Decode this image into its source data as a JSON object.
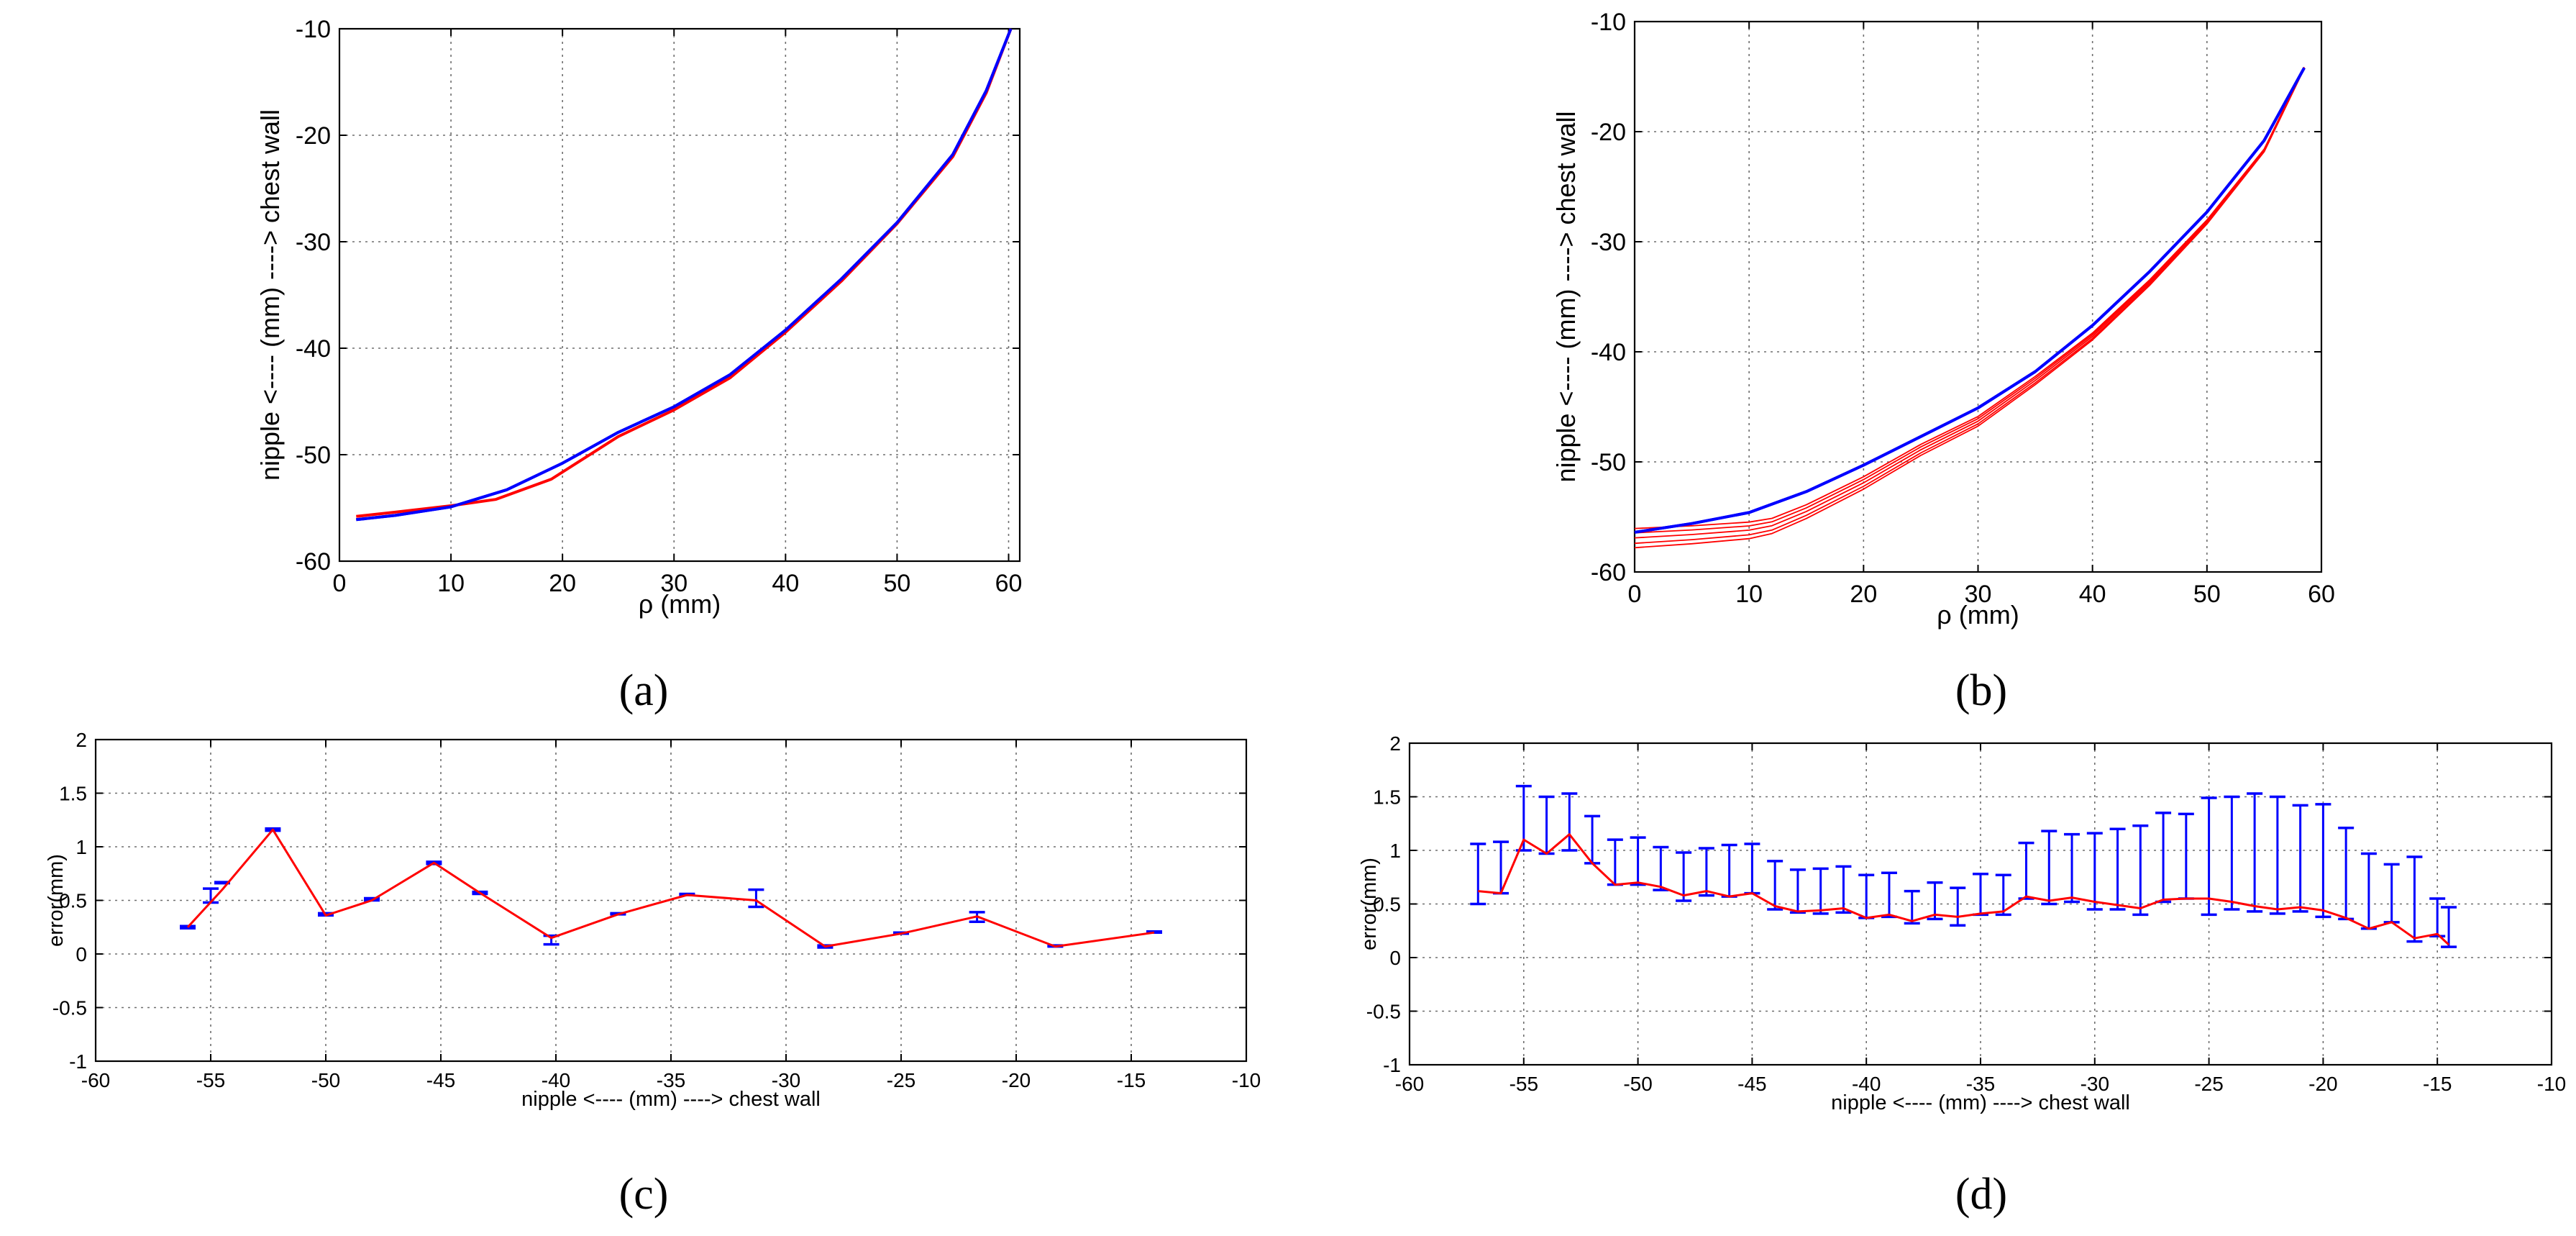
{
  "panel_labels": [
    "(a)",
    "(b)",
    "(c)",
    "(d)"
  ],
  "chart_data": [
    {
      "id": "a",
      "type": "line",
      "xlabel": "ρ (mm)",
      "ylabel": "nipple <---- (mm) ----> chest wall",
      "xlim": [
        0,
        61
      ],
      "ylim": [
        -60,
        -10
      ],
      "xticks": [
        0,
        10,
        20,
        30,
        40,
        50,
        60
      ],
      "yticks": [
        -60,
        -50,
        -40,
        -30,
        -20,
        -10
      ],
      "grid": true,
      "colors": {
        "reference": "#0000ff",
        "measured": "#ff0000"
      },
      "series": [
        {
          "color": "#0000ff",
          "x": [
            1.5,
            5,
            10,
            15,
            20,
            25,
            30,
            35,
            40,
            45,
            50,
            55,
            58,
            60.2
          ],
          "y": [
            -56.1,
            -55.7,
            -54.9,
            -53.3,
            -50.8,
            -47.9,
            -45.5,
            -42.5,
            -38.3,
            -33.5,
            -28.2,
            -21.8,
            -15.8,
            -10
          ]
        },
        {
          "color": "#ff0000",
          "x": [
            1.5,
            5,
            10,
            14,
            19,
            25,
            30,
            35,
            40,
            45,
            50,
            55,
            58,
            60.2
          ],
          "y": [
            -55.8,
            -55.4,
            -54.8,
            -54.2,
            -52.3,
            -48.3,
            -45.8,
            -42.8,
            -38.5,
            -33.7,
            -28.3,
            -22,
            -16,
            -10
          ]
        }
      ]
    },
    {
      "id": "b",
      "type": "line",
      "xlabel": "ρ (mm)",
      "ylabel": "nipple <---- (mm) ----> chest wall",
      "xlim": [
        0,
        60
      ],
      "ylim": [
        -60,
        -10
      ],
      "xticks": [
        0,
        10,
        20,
        30,
        40,
        50,
        60
      ],
      "yticks": [
        -60,
        -50,
        -40,
        -30,
        -20,
        -10
      ],
      "grid": true,
      "series": [
        {
          "color": "#0000ff",
          "x": [
            0,
            5,
            10,
            15,
            20,
            25,
            30,
            35,
            40,
            45,
            50,
            55,
            58.5
          ],
          "y": [
            -56.4,
            -55.6,
            -54.6,
            -52.7,
            -50.3,
            -47.7,
            -45.1,
            -41.8,
            -37.6,
            -32.7,
            -27.3,
            -20.8,
            -14.2
          ]
        },
        {
          "color": "#ff0000",
          "x": [
            0,
            5,
            10,
            12,
            15,
            20,
            25,
            30,
            35,
            40,
            45,
            50,
            55,
            58.5
          ],
          "y": [
            -56.9,
            -56.6,
            -56.2,
            -55.8,
            -54.5,
            -51.9,
            -48.9,
            -46.3,
            -42.6,
            -38.6,
            -33.7,
            -28.2,
            -21.7,
            -14.2
          ]
        }
      ]
    },
    {
      "id": "c",
      "type": "line",
      "xlabel": "nipple <---- (mm) ----> chest wall",
      "ylabel": "error(mm)",
      "xlim": [
        -60,
        -10
      ],
      "ylim": [
        -1,
        2
      ],
      "xticks": [
        -60,
        -55,
        -50,
        -45,
        -40,
        -35,
        -30,
        -25,
        -20,
        -15,
        -10
      ],
      "yticks": [
        -1,
        -0.5,
        0,
        0.5,
        1,
        1.5,
        2
      ],
      "grid": true,
      "series": [
        {
          "color": "#ff0000",
          "x": [
            -56,
            -54.5,
            -52.3,
            -50,
            -48,
            -45.3,
            -43.3,
            -40.2,
            -37.3,
            -34.3,
            -31.3,
            -28.3,
            -25,
            -21.7,
            -18.3,
            -14
          ],
          "y": [
            0.25,
            0.6,
            1.16,
            0.36,
            0.5,
            0.85,
            0.57,
            0.15,
            0.37,
            0.55,
            0.5,
            0.07,
            0.19,
            0.35,
            0.07,
            0.2
          ]
        }
      ],
      "errorbars": {
        "color": "#0000ff",
        "x": [
          -56,
          -55,
          -54.5,
          -52.3,
          -50,
          -48,
          -45.3,
          -43.3,
          -40.2,
          -37.3,
          -34.3,
          -31.3,
          -28.3,
          -25,
          -21.7,
          -18.3,
          -14
        ],
        "upper": [
          0.26,
          0.61,
          0.67,
          1.17,
          0.38,
          0.52,
          0.86,
          0.58,
          0.17,
          0.38,
          0.56,
          0.6,
          0.08,
          0.2,
          0.39,
          0.08,
          0.21
        ],
        "lower": [
          0.24,
          0.48,
          0.66,
          1.15,
          0.36,
          0.5,
          0.84,
          0.56,
          0.09,
          0.37,
          0.55,
          0.44,
          0.06,
          0.19,
          0.3,
          0.07,
          0.2
        ]
      }
    },
    {
      "id": "d",
      "type": "line",
      "xlabel": "nipple <---- (mm) ----> chest wall",
      "ylabel": "error(mm)",
      "xlim": [
        -60,
        -10
      ],
      "ylim": [
        -1,
        2
      ],
      "xticks": [
        -60,
        -55,
        -50,
        -45,
        -40,
        -35,
        -30,
        -25,
        -20,
        -15,
        -10
      ],
      "yticks": [
        -1,
        -0.5,
        0,
        0.5,
        1,
        1.5,
        2
      ],
      "grid": true,
      "series": [
        {
          "color": "#ff0000",
          "x": [
            -57,
            -56,
            -55,
            -54,
            -53,
            -52,
            -51,
            -50,
            -49,
            -48,
            -47,
            -46,
            -45,
            -44,
            -43,
            -42,
            -41,
            -40,
            -39,
            -38,
            -37,
            -36,
            -35,
            -34,
            -33,
            -32,
            -31,
            -30,
            -29,
            -28,
            -27,
            -26,
            -25,
            -24,
            -23,
            -22,
            -21,
            -20,
            -19,
            -18,
            -17,
            -16,
            -15,
            -14.5
          ],
          "y": [
            0.62,
            0.6,
            1.1,
            0.97,
            1.15,
            0.88,
            0.68,
            0.7,
            0.66,
            0.58,
            0.62,
            0.57,
            0.6,
            0.48,
            0.43,
            0.44,
            0.46,
            0.37,
            0.4,
            0.34,
            0.4,
            0.38,
            0.41,
            0.43,
            0.57,
            0.53,
            0.56,
            0.52,
            0.49,
            0.46,
            0.54,
            0.55,
            0.55,
            0.52,
            0.48,
            0.45,
            0.47,
            0.44,
            0.37,
            0.27,
            0.33,
            0.18,
            0.22,
            0.12
          ]
        }
      ],
      "errorbars": {
        "color": "#0000ff",
        "x": [
          -57,
          -56,
          -55,
          -54,
          -53,
          -52,
          -51,
          -50,
          -49,
          -48,
          -47,
          -46,
          -45,
          -44,
          -43,
          -42,
          -41,
          -40,
          -39,
          -38,
          -37,
          -36,
          -35,
          -34,
          -33,
          -32,
          -31,
          -30,
          -29,
          -28,
          -27,
          -26,
          -25,
          -24,
          -23,
          -22,
          -21,
          -20,
          -19,
          -18,
          -17,
          -16,
          -15,
          -14.5
        ],
        "upper": [
          1.06,
          1.08,
          1.6,
          1.5,
          1.53,
          1.32,
          1.1,
          1.12,
          1.03,
          0.98,
          1.02,
          1.05,
          1.06,
          0.9,
          0.82,
          0.83,
          0.85,
          0.77,
          0.79,
          0.62,
          0.7,
          0.65,
          0.78,
          0.77,
          1.07,
          1.18,
          1.15,
          1.16,
          1.2,
          1.23,
          1.35,
          1.34,
          1.49,
          1.5,
          1.53,
          1.5,
          1.42,
          1.43,
          1.21,
          0.97,
          0.87,
          0.94,
          0.55,
          0.47
        ],
        "lower": [
          0.5,
          0.6,
          1.0,
          0.97,
          1.0,
          0.88,
          0.68,
          0.68,
          0.63,
          0.53,
          0.58,
          0.57,
          0.6,
          0.45,
          0.42,
          0.41,
          0.42,
          0.37,
          0.38,
          0.32,
          0.36,
          0.3,
          0.4,
          0.4,
          0.55,
          0.5,
          0.52,
          0.45,
          0.45,
          0.4,
          0.52,
          0.55,
          0.4,
          0.45,
          0.43,
          0.41,
          0.43,
          0.38,
          0.36,
          0.27,
          0.33,
          0.15,
          0.2,
          0.1
        ]
      }
    }
  ]
}
